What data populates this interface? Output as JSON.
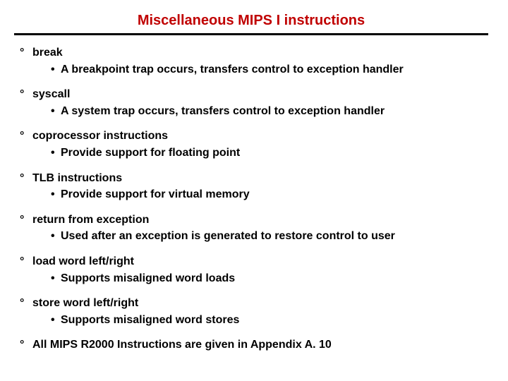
{
  "title": "Miscellaneous MIPS I instructions",
  "title_color": "#c00000",
  "text_color": "#000000",
  "items": [
    {
      "name": "break",
      "detail": "A breakpoint trap occurs, transfers control to exception handler"
    },
    {
      "name": "syscall",
      "detail": "A system trap occurs, transfers control to exception handler"
    },
    {
      "name": "coprocessor instructions",
      "detail": "Provide support for floating point"
    },
    {
      "name": "TLB instructions",
      "detail": "Provide support for virtual memory"
    },
    {
      "name": "return from exception",
      "detail": "Used after an exception is generated to restore control to user"
    },
    {
      "name": "load word left/right",
      "detail": "Supports misaligned word loads"
    },
    {
      "name": "store word left/right",
      "detail": "Supports misaligned word stores"
    },
    {
      "name": "All MIPS R2000 Instructions are given in Appendix A. 10",
      "detail": null
    }
  ],
  "bullet_marker": "°",
  "sub_marker": "•"
}
